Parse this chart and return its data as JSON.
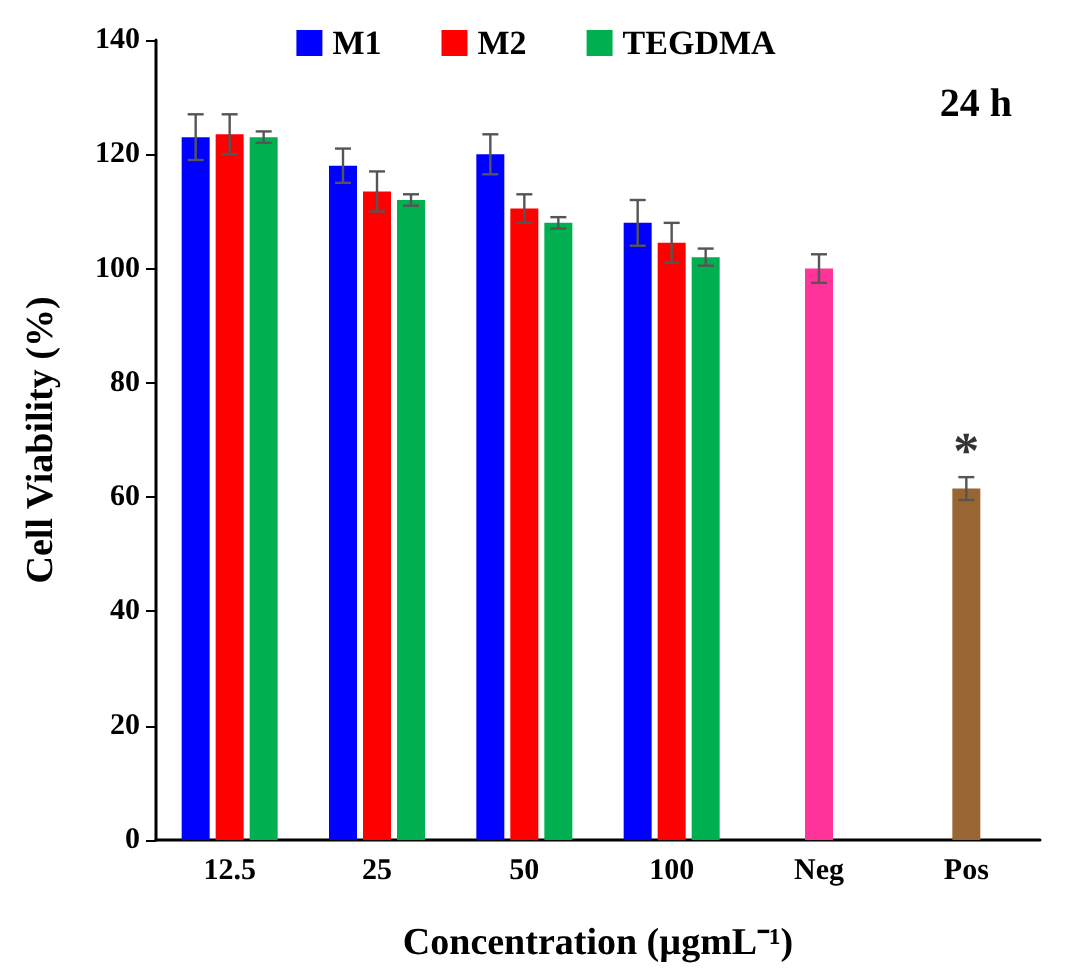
{
  "chart_data": {
    "type": "bar",
    "xlabel": "Concentration (µgmL⁻¹)",
    "ylabel": "Cell Viability (%)",
    "categories": [
      "12.5",
      "25",
      "50",
      "100",
      "Neg",
      "Pos"
    ],
    "series": [
      {
        "name": "M1",
        "color": "#0000ff",
        "values": [
          123,
          118,
          120,
          108,
          null,
          null
        ],
        "errors": [
          4,
          3,
          3.5,
          4,
          null,
          null
        ]
      },
      {
        "name": "M2",
        "color": "#ff0000",
        "values": [
          123.5,
          113.5,
          110.5,
          104.5,
          null,
          null
        ],
        "errors": [
          3.5,
          3.5,
          2.5,
          3.5,
          null,
          null
        ]
      },
      {
        "name": "TEGDMA",
        "color": "#00b050",
        "values": [
          123,
          112,
          108,
          102,
          null,
          null
        ],
        "errors": [
          1,
          1,
          1,
          1.5,
          null,
          null
        ]
      },
      {
        "colors": [
          null,
          null,
          null,
          null,
          "#ff3399",
          "#996633"
        ],
        "values": [
          null,
          null,
          null,
          null,
          100,
          61.5
        ],
        "errors": [
          null,
          null,
          null,
          null,
          2.5,
          2
        ]
      }
    ],
    "ylim": [
      0,
      140
    ],
    "yticks": [
      0,
      20,
      40,
      60,
      80,
      100,
      120,
      140
    ],
    "annotations": [
      "24 h",
      "*"
    ],
    "legend": "top",
    "grid": false
  }
}
